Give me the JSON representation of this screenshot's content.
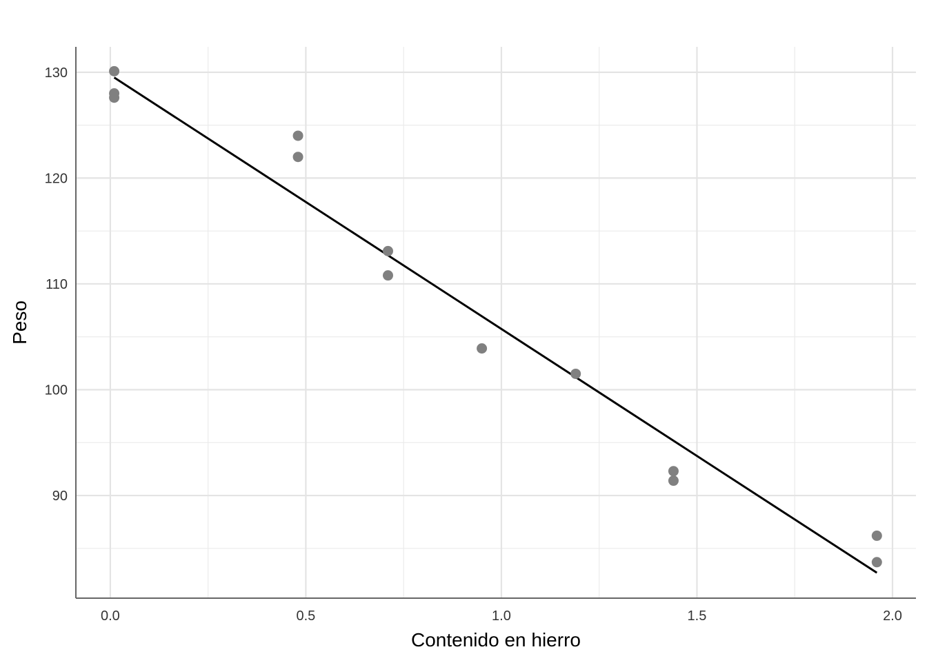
{
  "chart_data": {
    "type": "scatter",
    "title": "",
    "xlabel": "Contenido en hierro",
    "ylabel": "Peso",
    "xlim": [
      -0.088,
      2.06
    ],
    "ylim": [
      80.3,
      132.4
    ],
    "xticks": [
      0.0,
      0.5,
      1.0,
      1.5,
      2.0
    ],
    "xtick_labels": [
      "0.0",
      "0.5",
      "1.0",
      "1.5",
      "2.0"
    ],
    "yticks": [
      90,
      100,
      110,
      120,
      130
    ],
    "ytick_labels": [
      "90",
      "100",
      "110",
      "120",
      "130"
    ],
    "grid": true,
    "point_color": "#808080",
    "line_color": "#000000",
    "points": [
      {
        "x": 0.01,
        "y": 130.1
      },
      {
        "x": 0.01,
        "y": 128.0
      },
      {
        "x": 0.01,
        "y": 127.6
      },
      {
        "x": 0.48,
        "y": 124.0
      },
      {
        "x": 0.48,
        "y": 122.0
      },
      {
        "x": 0.71,
        "y": 113.1
      },
      {
        "x": 0.71,
        "y": 110.8
      },
      {
        "x": 0.95,
        "y": 103.9
      },
      {
        "x": 1.19,
        "y": 101.5
      },
      {
        "x": 1.44,
        "y": 92.3
      },
      {
        "x": 1.44,
        "y": 91.4
      },
      {
        "x": 1.96,
        "y": 86.2
      },
      {
        "x": 1.96,
        "y": 83.7
      }
    ],
    "fit_line": {
      "x": [
        0.01,
        1.96
      ],
      "y": [
        129.5,
        82.7
      ]
    }
  }
}
